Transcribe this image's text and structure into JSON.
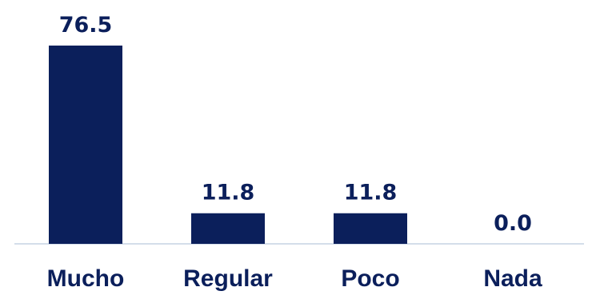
{
  "chart_data": {
    "type": "bar",
    "title": "",
    "xlabel": "",
    "ylabel": "",
    "categories": [
      "Mucho",
      "Regular",
      "Poco",
      "Nada"
    ],
    "values": [
      76.5,
      11.8,
      11.8,
      0.0
    ],
    "value_labels": [
      "76.5",
      "11.8",
      "11.8",
      "0.0"
    ],
    "ylim": [
      0,
      76.5
    ],
    "grid": false,
    "legend": "none",
    "colors": {
      "bar": "#0b1f5b",
      "text": "#0b1f5b",
      "baseline": "#c5d3e4"
    }
  }
}
